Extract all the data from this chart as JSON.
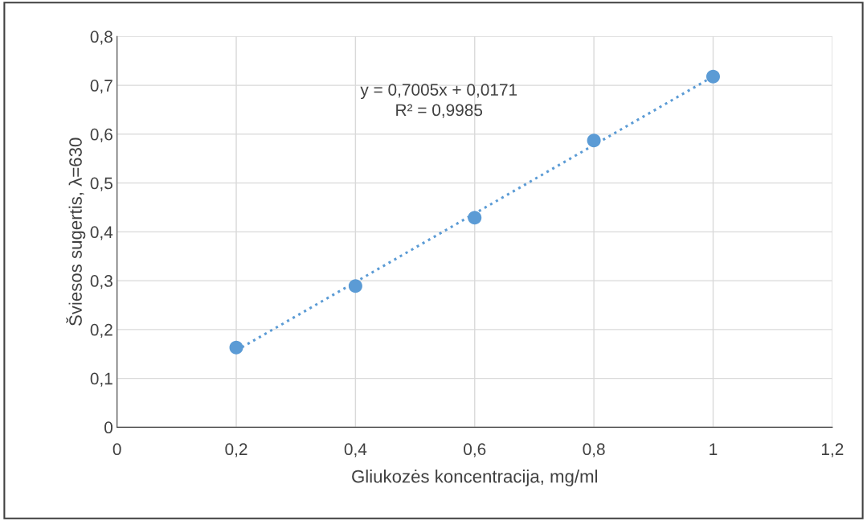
{
  "chart_data": {
    "type": "scatter",
    "xlabel": "Gliukozės koncentracija, mg/ml",
    "ylabel": "Šviesos sugertis, λ=630",
    "series": [
      {
        "color": "#5b9bd5",
        "marker": "circle",
        "x": [
          0.2,
          0.4,
          0.6,
          0.8,
          1.0
        ],
        "values": [
          0.163,
          0.289,
          0.429,
          0.587,
          0.718
        ]
      },
      {
        "type": "line",
        "color": "#5b9bd5",
        "line_style": "dotted",
        "x": [
          0.2,
          1.0
        ],
        "values": [
          0.157,
          0.718
        ]
      }
    ],
    "annotations": [
      "y = 0,7005x + 0,0171",
      "R² = 0,9985"
    ],
    "xlim": [
      0,
      1.2
    ],
    "xticks": [
      0,
      {
        "value": 0.2,
        "label": "0,2"
      },
      {
        "value": 0.4,
        "label": "0,4"
      },
      {
        "value": 0.6,
        "label": "0,6"
      },
      {
        "value": 0.8,
        "label": "0,8"
      },
      1,
      {
        "value": 1.2,
        "label": "1,2"
      }
    ],
    "ylim": [
      0,
      0.8
    ],
    "yticks": [
      0,
      {
        "value": 0.1,
        "label": "0,1"
      },
      {
        "value": 0.2,
        "label": "0,2"
      },
      {
        "value": 0.3,
        "label": "0,3"
      },
      {
        "value": 0.4,
        "label": "0,4"
      },
      {
        "value": 0.5,
        "label": "0,5"
      },
      {
        "value": 0.6,
        "label": "0,6"
      },
      {
        "value": 0.7,
        "label": "0,7"
      },
      {
        "value": 0.8,
        "label": "0,8"
      }
    ],
    "grid": true,
    "legend": false
  }
}
